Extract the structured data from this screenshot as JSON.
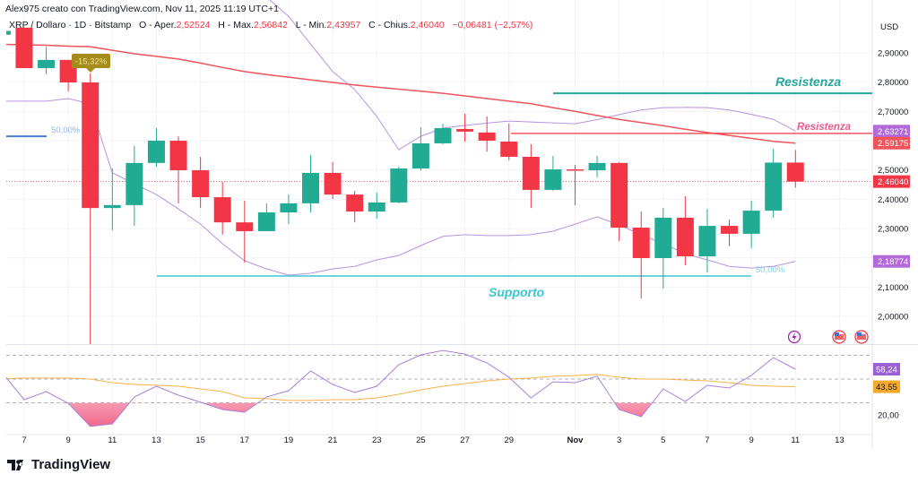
{
  "header": {
    "credit": "Alex975 creato con TradingView.com, Nov 11, 2025 11:19 UTC+1",
    "symbol": "XRP / Dollaro · 1D · Bitstamp",
    "open_label": "O - Aper.",
    "open": "2,52524",
    "high_label": "H - Max.",
    "high": "2,56842",
    "low_label": "L - Min.",
    "low": "2,43957",
    "close_label": "C - Chius.",
    "close": "2,46040",
    "change": "−0,06481 (−2,57%)"
  },
  "footer": {
    "brand": "TradingView"
  },
  "colors": {
    "up": "#22ab94",
    "down": "#f23645",
    "ma": "#f0545a",
    "bb": "#b793e0",
    "rsi": "#a77fd8",
    "rsi_ma": "#f7b24a",
    "support": "#3ac6d0",
    "resistance_top": "#26a69a",
    "resistance_red": "#f23645"
  },
  "annotations": {
    "resistance_top": {
      "label": "Resistenza",
      "price": 2.762
    },
    "resistance_red": {
      "label": "Resistenza",
      "price": 2.625
    },
    "support": {
      "label": "Supporto",
      "price": 2.138
    },
    "fib_left": {
      "label": "50,00%",
      "price": 2.615
    },
    "fib_right": {
      "label": "50,00%"
    },
    "drop_badge": "-15,32%"
  },
  "price_axis": {
    "currency": "USD",
    "ticks": [
      "2,90000",
      "2,80000",
      "2,70000",
      "2,50000",
      "2,40000",
      "2,30000",
      "2,10000",
      "2,00000"
    ],
    "tick_values": [
      2.9,
      2.8,
      2.7,
      2.5,
      2.4,
      2.3,
      2.1,
      2.0
    ],
    "labels": [
      {
        "text": "2,63271",
        "price": 2.63271,
        "color": "#b36ad9"
      },
      {
        "text": "2,59175",
        "price": 2.59175,
        "color": "#f0545a"
      },
      {
        "text": "2,46040",
        "price": 2.4604,
        "color": "#f23645"
      },
      {
        "text": "2,18774",
        "price": 2.18774,
        "color": "#b36ad9"
      }
    ]
  },
  "rsi_axis": {
    "tick": "20,00",
    "labels": [
      {
        "text": "58,24",
        "value": 58.24,
        "color": "#9c5fd6"
      },
      {
        "text": "43,55",
        "value": 43.55,
        "color": "#f7a928"
      }
    ],
    "levels": [
      70,
      50,
      30
    ]
  },
  "time_axis": {
    "labels": [
      {
        "text": "7",
        "date": "2025-10-07"
      },
      {
        "text": "9",
        "date": "2025-10-09"
      },
      {
        "text": "11",
        "date": "2025-10-11"
      },
      {
        "text": "13",
        "date": "2025-10-13"
      },
      {
        "text": "15",
        "date": "2025-10-15"
      },
      {
        "text": "17",
        "date": "2025-10-17"
      },
      {
        "text": "19",
        "date": "2025-10-19"
      },
      {
        "text": "21",
        "date": "2025-10-21"
      },
      {
        "text": "23",
        "date": "2025-10-23"
      },
      {
        "text": "25",
        "date": "2025-10-25"
      },
      {
        "text": "27",
        "date": "2025-10-27"
      },
      {
        "text": "29",
        "date": "2025-10-29"
      },
      {
        "text": "Nov",
        "date": "2025-11-01"
      },
      {
        "text": "3",
        "date": "2025-11-03"
      },
      {
        "text": "5",
        "date": "2025-11-05"
      },
      {
        "text": "7",
        "date": "2025-11-07"
      },
      {
        "text": "9",
        "date": "2025-11-09"
      },
      {
        "text": "11",
        "date": "2025-11-11"
      },
      {
        "text": "13",
        "date": "2025-11-13"
      }
    ]
  },
  "icons": [
    "lightning-event-icon",
    "us-flag-event-icon",
    "us-flag-event-icon"
  ],
  "chart_data": {
    "type": "candlestick",
    "dates": [
      "2025-10-06",
      "2025-10-07",
      "2025-10-08",
      "2025-10-09",
      "2025-10-10",
      "2025-10-11",
      "2025-10-12",
      "2025-10-13",
      "2025-10-14",
      "2025-10-15",
      "2025-10-16",
      "2025-10-17",
      "2025-10-18",
      "2025-10-19",
      "2025-10-20",
      "2025-10-21",
      "2025-10-22",
      "2025-10-23",
      "2025-10-24",
      "2025-10-25",
      "2025-10-26",
      "2025-10-27",
      "2025-10-28",
      "2025-10-29",
      "2025-10-30",
      "2025-10-31",
      "2025-11-01",
      "2025-11-02",
      "2025-11-03",
      "2025-11-04",
      "2025-11-05",
      "2025-11-06",
      "2025-11-07",
      "2025-11-08",
      "2025-11-09",
      "2025-11-10",
      "2025-11-11"
    ],
    "ohlc": [
      [
        2.962,
        2.98,
        2.95,
        2.975
      ],
      [
        2.986,
        2.986,
        2.848,
        2.848
      ],
      [
        2.848,
        2.921,
        2.827,
        2.876
      ],
      [
        2.876,
        2.876,
        2.768,
        2.799
      ],
      [
        2.799,
        2.83,
        1.9,
        2.37
      ],
      [
        2.37,
        2.505,
        2.294,
        2.38
      ],
      [
        2.38,
        2.582,
        2.309,
        2.524
      ],
      [
        2.524,
        2.643,
        2.511,
        2.6
      ],
      [
        2.6,
        2.615,
        2.386,
        2.499
      ],
      [
        2.499,
        2.545,
        2.37,
        2.407
      ],
      [
        2.407,
        2.459,
        2.279,
        2.321
      ],
      [
        2.321,
        2.395,
        2.184,
        2.291
      ],
      [
        2.291,
        2.386,
        2.291,
        2.355
      ],
      [
        2.355,
        2.416,
        2.315,
        2.386
      ],
      [
        2.386,
        2.551,
        2.355,
        2.49
      ],
      [
        2.49,
        2.527,
        2.401,
        2.416
      ],
      [
        2.416,
        2.429,
        2.321,
        2.358
      ],
      [
        2.358,
        2.423,
        2.334,
        2.389
      ],
      [
        2.389,
        2.511,
        2.386,
        2.505
      ],
      [
        2.505,
        2.646,
        2.499,
        2.591
      ],
      [
        2.591,
        2.658,
        2.588,
        2.643
      ],
      [
        2.64,
        2.692,
        2.597,
        2.631
      ],
      [
        2.628,
        2.683,
        2.563,
        2.6
      ],
      [
        2.597,
        2.658,
        2.533,
        2.545
      ],
      [
        2.545,
        2.588,
        2.37,
        2.432
      ],
      [
        2.432,
        2.548,
        2.429,
        2.502
      ],
      [
        2.502,
        2.517,
        2.38,
        2.499
      ],
      [
        2.499,
        2.548,
        2.475,
        2.524
      ],
      [
        2.524,
        2.527,
        2.257,
        2.303
      ],
      [
        2.303,
        2.358,
        2.061,
        2.199
      ],
      [
        2.199,
        2.37,
        2.095,
        2.337
      ],
      [
        2.337,
        2.41,
        2.175,
        2.205
      ],
      [
        2.205,
        2.367,
        2.15,
        2.309
      ],
      [
        2.309,
        2.331,
        2.239,
        2.282
      ],
      [
        2.282,
        2.395,
        2.233,
        2.361
      ],
      [
        2.361,
        2.572,
        2.337,
        2.52524
      ],
      [
        2.52524,
        2.56842,
        2.43957,
        2.4604
      ]
    ],
    "ma": [
      2.929,
      2.928,
      2.926,
      2.923,
      2.921,
      2.909,
      2.897,
      2.888,
      2.879,
      2.865,
      2.85,
      2.836,
      2.826,
      2.817,
      2.808,
      2.799,
      2.79,
      2.783,
      2.776,
      2.769,
      2.762,
      2.753,
      2.744,
      2.735,
      2.726,
      2.713,
      2.7,
      2.686,
      2.673,
      2.662,
      2.651,
      2.639,
      2.628,
      2.618,
      2.608,
      2.598,
      2.59175
    ],
    "bb_upper": [
      null,
      null,
      null,
      null,
      null,
      null,
      null,
      null,
      null,
      null,
      null,
      null,
      3.09,
      3.025,
      2.93,
      2.836,
      2.775,
      2.683,
      2.569,
      2.615,
      2.643,
      2.652,
      2.66,
      2.667,
      2.664,
      2.661,
      2.658,
      2.672,
      2.689,
      2.705,
      2.713,
      2.714,
      2.713,
      2.705,
      2.69,
      2.673,
      2.63271
    ],
    "bb_lower": [
      2.735,
      2.735,
      2.735,
      2.744,
      2.726,
      2.49,
      2.453,
      2.416,
      2.367,
      2.315,
      2.248,
      2.19,
      2.162,
      2.141,
      2.147,
      2.162,
      2.171,
      2.193,
      2.208,
      2.242,
      2.273,
      2.279,
      2.276,
      2.276,
      2.279,
      2.291,
      2.315,
      2.34,
      2.312,
      2.279,
      2.248,
      2.214,
      2.193,
      2.171,
      2.165,
      2.171,
      2.18774
    ],
    "rsi": [
      55.3,
      32.7,
      39.5,
      29.7,
      10.2,
      12.4,
      35,
      44,
      36.5,
      30.5,
      24.4,
      22.2,
      35,
      40.2,
      56.8,
      45.5,
      38.7,
      44,
      62,
      70.3,
      74,
      71,
      63.5,
      51.5,
      34.2,
      47.7,
      47,
      52.3,
      24.4,
      18.4,
      41.7,
      31.2,
      44.7,
      42.5,
      53,
      68,
      58.24
    ],
    "rsi_ma": [
      50,
      50.8,
      50.8,
      50.8,
      50,
      47,
      45.5,
      44.7,
      44,
      41.7,
      39.5,
      34.2,
      33.5,
      32,
      32,
      32.7,
      32.7,
      34.2,
      37.2,
      41,
      44,
      46.2,
      48.5,
      50,
      50.8,
      52.3,
      53,
      53.8,
      51.5,
      50,
      50,
      49.2,
      48.5,
      47,
      44.7,
      44,
      43.55
    ],
    "ylim": [
      1.9,
      3.0
    ],
    "rsi_ylim": [
      0,
      100
    ]
  }
}
